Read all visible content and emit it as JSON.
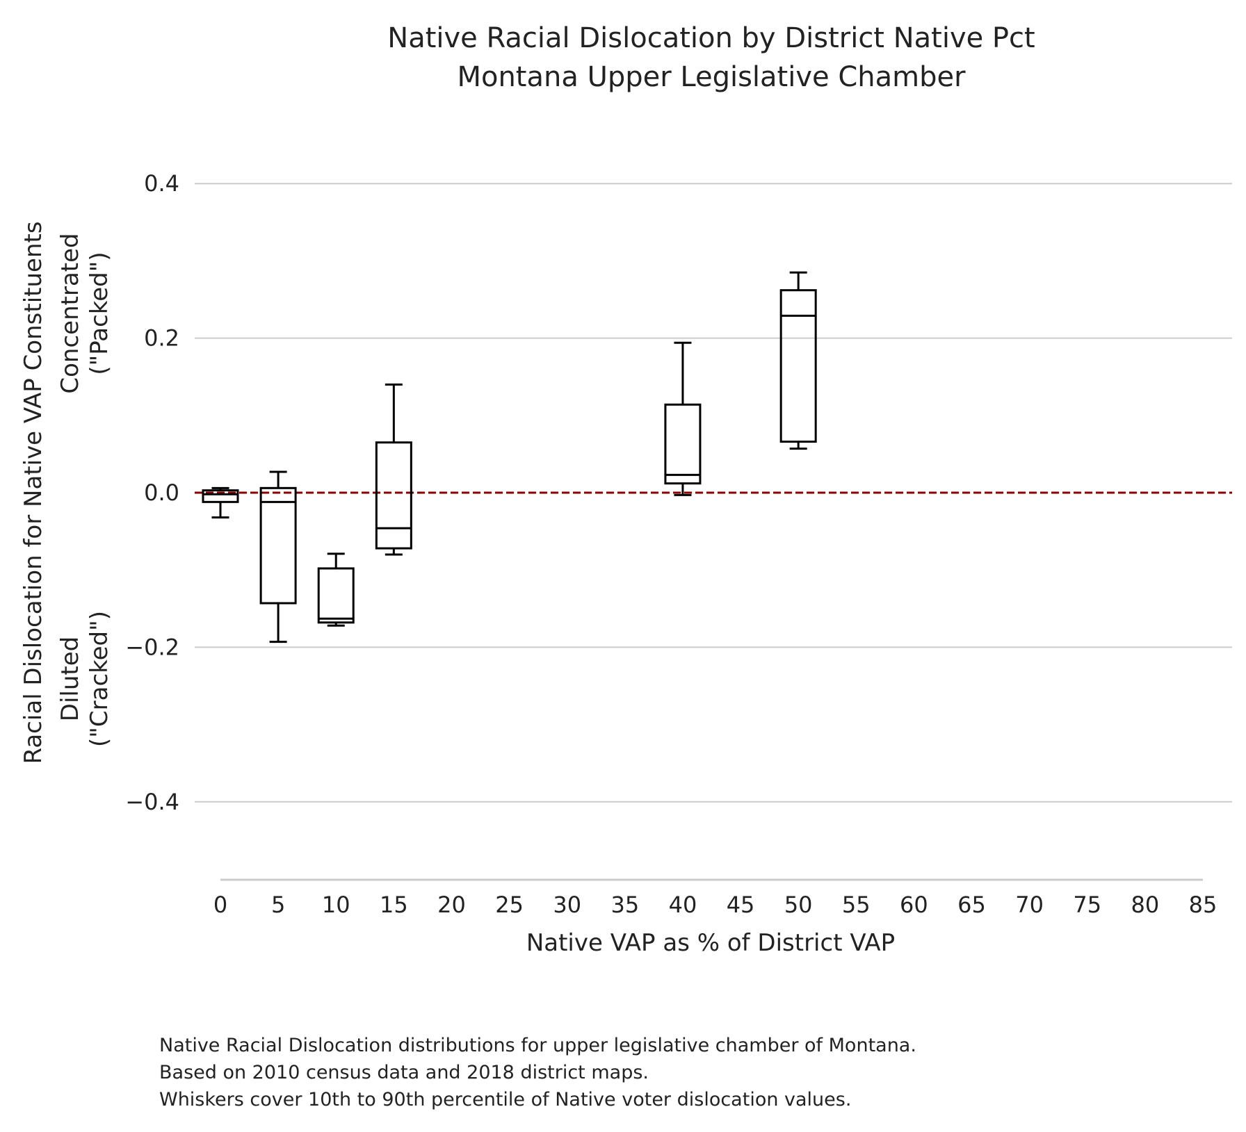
{
  "chart_data": {
    "type": "box",
    "title": "Native Racial Dislocation by District Native Pct",
    "subtitle": "Montana Upper Legislative Chamber",
    "xlabel": "Native VAP as % of District VAP",
    "ylabel_lines": [
      "Racial Dislocation for Native VAP Constituents"
    ],
    "ylabel_top_lines": [
      "Concentrated",
      "(\"Packed\")"
    ],
    "ylabel_bottom_lines": [
      "Diluted",
      "(\"Cracked\")"
    ],
    "ylim": [
      -0.5,
      0.5
    ],
    "xlim": [
      0,
      85
    ],
    "yticks": [
      0.4,
      0.2,
      0.0,
      -0.2,
      -0.4
    ],
    "ytick_labels": [
      "0.4",
      "0.2",
      "0.0",
      "−0.2",
      "−0.4"
    ],
    "xticks": [
      0,
      5,
      10,
      15,
      20,
      25,
      30,
      35,
      40,
      45,
      50,
      55,
      60,
      65,
      70,
      75,
      80,
      85
    ],
    "xtick_labels": [
      "0",
      "5",
      "10",
      "15",
      "20",
      "25",
      "30",
      "35",
      "40",
      "45",
      "50",
      "55",
      "60",
      "65",
      "70",
      "75",
      "80",
      "85"
    ],
    "grid": "horizontal",
    "reference_line": {
      "y": 0.0,
      "style": "dashed",
      "color": "#8b0000"
    },
    "boxes": [
      {
        "x": 0,
        "whisker_low": -0.032,
        "q1": -0.012,
        "median": -0.002,
        "q3": 0.003,
        "whisker_high": 0.006
      },
      {
        "x": 5,
        "whisker_low": -0.193,
        "q1": -0.143,
        "median": -0.012,
        "q3": 0.006,
        "whisker_high": 0.027
      },
      {
        "x": 10,
        "whisker_low": -0.172,
        "q1": -0.168,
        "median": -0.163,
        "q3": -0.098,
        "whisker_high": -0.079
      },
      {
        "x": 15,
        "whisker_low": -0.08,
        "q1": -0.072,
        "median": -0.046,
        "q3": 0.065,
        "whisker_high": 0.14
      },
      {
        "x": 40,
        "whisker_low": -0.003,
        "q1": 0.012,
        "median": 0.023,
        "q3": 0.114,
        "whisker_high": 0.194
      },
      {
        "x": 50,
        "whisker_low": 0.057,
        "q1": 0.066,
        "median": 0.229,
        "q3": 0.262,
        "whisker_high": 0.285
      }
    ],
    "colors": {
      "box": "#000000",
      "grid": "#cccccc",
      "reference": "#8b0000",
      "axis": "#cccccc"
    }
  },
  "caption_lines": [
    "Native Racial Dislocation distributions for upper legislative chamber of Montana.",
    "Based on 2010 census data and 2018 district maps.",
    "Whiskers cover 10th to 90th percentile of Native voter dislocation values."
  ]
}
